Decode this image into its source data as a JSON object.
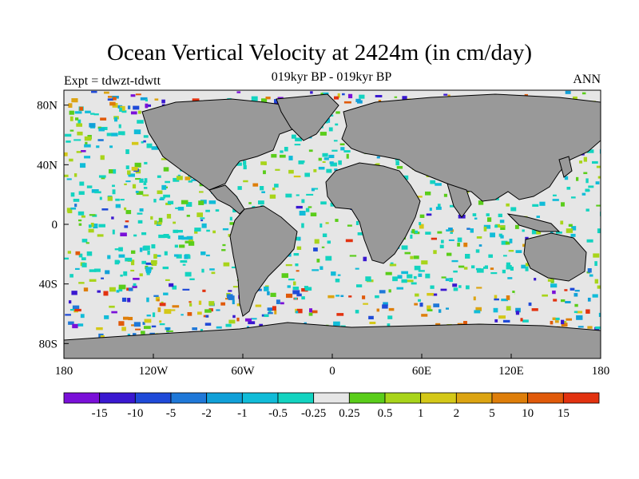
{
  "header": {
    "title": "Ocean Vertical Velocity at 2424m (in cm/day)",
    "left_subtitle": "Expt = tdwzt-tdwtt",
    "center_subtitle": "019kyr BP - 019kyr BP",
    "right_subtitle": "ANN"
  },
  "chart_data": {
    "type": "heatmap",
    "projection": "cylindrical-equidistant",
    "title": "Ocean Vertical Velocity at 2424m (in cm/day)",
    "x_ticks": [
      "180",
      "120W",
      "60W",
      "0",
      "60E",
      "120E",
      "180"
    ],
    "x_tick_values": [
      -180,
      -120,
      -60,
      0,
      60,
      120,
      180
    ],
    "y_ticks": [
      "80N",
      "40N",
      "0",
      "40S",
      "80S"
    ],
    "y_tick_values": [
      80,
      40,
      0,
      -40,
      -80
    ],
    "xlim": [
      -180,
      180
    ],
    "ylim": [
      -90,
      90
    ],
    "land_color": "#999999",
    "colorbar": {
      "labels": [
        "-15",
        "-10",
        "-5",
        "-2",
        "-1",
        "-0.5",
        "-0.25",
        "0.25",
        "0.5",
        "1",
        "2",
        "5",
        "10",
        "15"
      ],
      "colors": [
        "#7a10d8",
        "#3a18d0",
        "#1f4ad8",
        "#1f78d8",
        "#11a0d8",
        "#11bcd8",
        "#13d3c0",
        "#e6e6e6",
        "#5acd1a",
        "#a8d41a",
        "#d4c818",
        "#dca412",
        "#de7e0a",
        "#e05a0a",
        "#e23210"
      ]
    }
  }
}
